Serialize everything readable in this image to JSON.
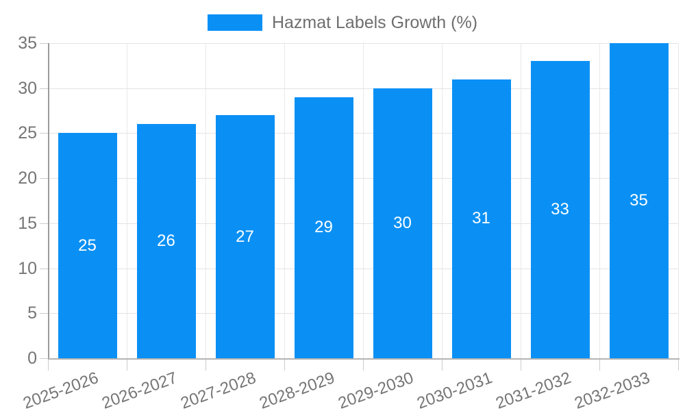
{
  "legend": {
    "label": "Hazmat Labels Growth (%)"
  },
  "chart_data": {
    "type": "bar",
    "title": "Hazmat Labels Growth (%)",
    "categories": [
      "2025-2026",
      "2026-2027",
      "2027-2028",
      "2028-2029",
      "2029-2030",
      "2030-2031",
      "2031-2032",
      "2032-2033"
    ],
    "values": [
      25,
      26,
      27,
      29,
      30,
      31,
      33,
      35
    ],
    "xlabel": "",
    "ylabel": "",
    "ylim": [
      0,
      35
    ],
    "y_ticks": [
      0,
      5,
      10,
      15,
      20,
      25,
      30,
      35
    ],
    "grid": true,
    "legend_position": "top",
    "x_label_rotation_deg": -20,
    "colors": {
      "bar": "#0a90f5",
      "value_label": "#ffffff",
      "axis_text": "#757575",
      "legend_text": "#6e6e6e",
      "gridline": "#e3e3e3",
      "vertical_gridline": "#e8e8e8",
      "tick": "#cccccc",
      "y_axis_line": "#9b9b9b",
      "x_axis_line": "#b3b3b3",
      "background": "#ffffff"
    }
  }
}
